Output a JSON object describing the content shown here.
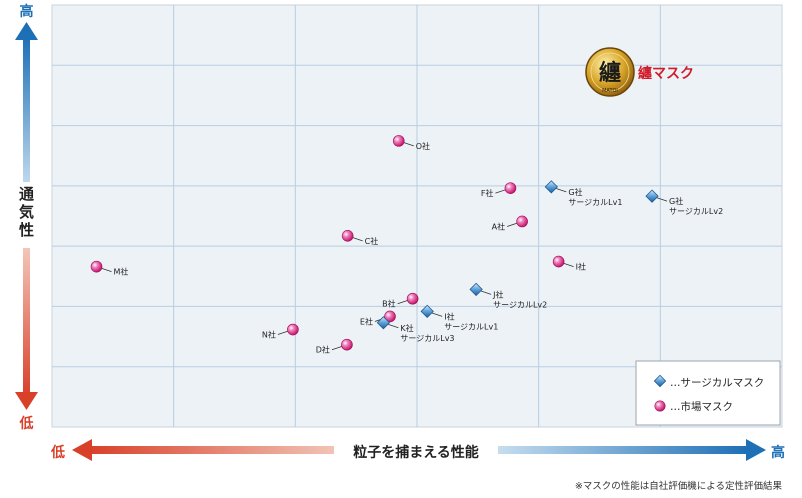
{
  "chart_data": {
    "type": "scatter",
    "title": "",
    "xlabel": "粒子を捕まえる性能",
    "ylabel": "通気性",
    "x_low_label": "低",
    "x_high_label": "高",
    "y_low_label": "低",
    "y_high_label": "高",
    "xlim": [
      0,
      100
    ],
    "ylim": [
      0,
      100
    ],
    "grid": true,
    "legend_position": "bottom-right",
    "colors": {
      "surgical": "#3f82c3",
      "market": "#d8247f",
      "brand": "#d11a2a"
    },
    "legend": [
      {
        "key": "surgical",
        "marker": "diamond",
        "label": "…サージカルマスク"
      },
      {
        "key": "market",
        "marker": "circle",
        "label": "…市場マスク"
      }
    ],
    "series": [
      {
        "name": "…市場マスク",
        "key": "market",
        "points": [
          {
            "label": "O社",
            "x": 47.5,
            "y": 67.8,
            "side": "right"
          },
          {
            "label": "F社",
            "x": 62.8,
            "y": 56.6,
            "side": "left"
          },
          {
            "label": "A社",
            "x": 64.4,
            "y": 48.7,
            "side": "left"
          },
          {
            "label": "C社",
            "x": 40.5,
            "y": 45.3,
            "side": "right"
          },
          {
            "label": "I社",
            "x": 69.4,
            "y": 39.2,
            "side": "right"
          },
          {
            "label": "M社",
            "x": 6.1,
            "y": 38.0,
            "side": "right"
          },
          {
            "label": "B社",
            "x": 49.4,
            "y": 30.4,
            "side": "left"
          },
          {
            "label": "E社",
            "x": 46.3,
            "y": 26.2,
            "side": "left"
          },
          {
            "label": "N社",
            "x": 33.0,
            "y": 23.1,
            "side": "left"
          },
          {
            "label": "D社",
            "x": 40.4,
            "y": 19.5,
            "side": "left"
          }
        ]
      },
      {
        "name": "…サージカルマスク",
        "key": "surgical",
        "points": [
          {
            "label": "G社",
            "sublabel": "サージカルLv1",
            "x": 68.4,
            "y": 56.9,
            "side": "right"
          },
          {
            "label": "G社",
            "sublabel": "サージカルLv2",
            "x": 82.2,
            "y": 54.7,
            "side": "right"
          },
          {
            "label": "J社",
            "sublabel": "サージカルLv2",
            "x": 58.1,
            "y": 32.6,
            "side": "right"
          },
          {
            "label": "I社",
            "sublabel": "サージカルLv1",
            "x": 51.4,
            "y": 27.4,
            "side": "right"
          },
          {
            "label": "K社",
            "sublabel": "サージカルLv3",
            "x": 45.4,
            "y": 24.7,
            "side": "right"
          }
        ]
      }
    ],
    "brand_label": "纏マスク",
    "brand_logo_char": "纏",
    "brand_logo_sub": "MATOI",
    "note": "※マスクの性能は自社評価機による定性評価結果"
  }
}
